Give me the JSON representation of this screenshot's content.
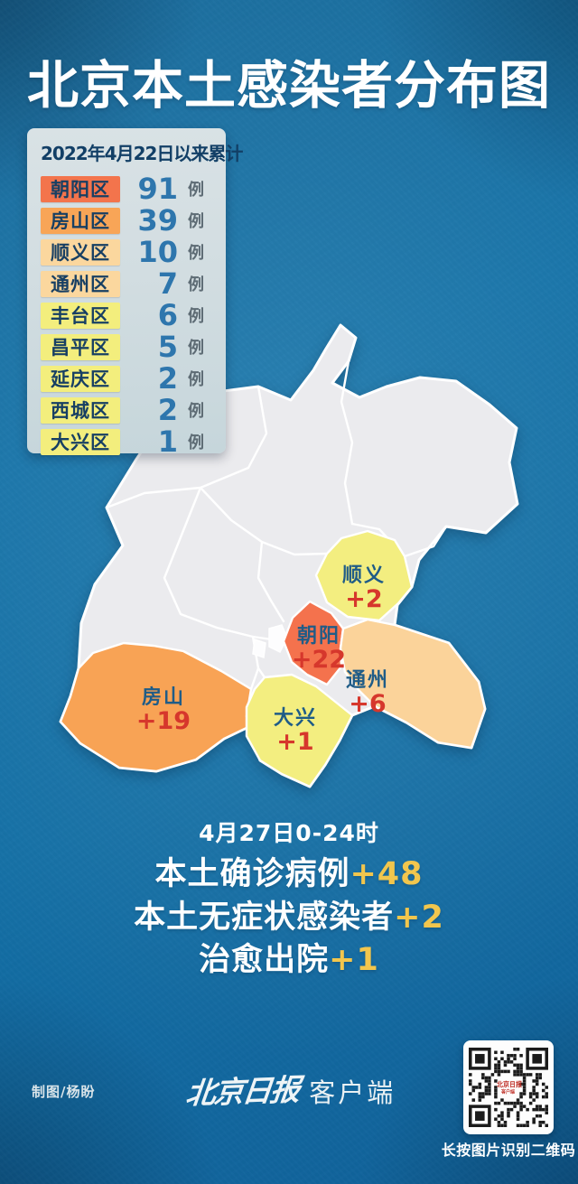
{
  "title": "北京本土感染者分布图",
  "legend": {
    "header": "2022年4月22日以来累计",
    "unit": "例",
    "rows": [
      {
        "district": "朝阳区",
        "count": "91",
        "level": "high"
      },
      {
        "district": "房山区",
        "count": "39",
        "level": "medium"
      },
      {
        "district": "顺义区",
        "count": "10",
        "level": "low"
      },
      {
        "district": "通州区",
        "count": "7",
        "level": "low"
      },
      {
        "district": "丰台区",
        "count": "6",
        "level": "minimal"
      },
      {
        "district": "昌平区",
        "count": "5",
        "level": "minimal"
      },
      {
        "district": "延庆区",
        "count": "2",
        "level": "minimal"
      },
      {
        "district": "西城区",
        "count": "2",
        "level": "minimal"
      },
      {
        "district": "大兴区",
        "count": "1",
        "level": "minimal"
      }
    ]
  },
  "map": {
    "labels": [
      {
        "name": "顺义",
        "value": "+2"
      },
      {
        "name": "朝阳",
        "value": "+22"
      },
      {
        "name": "通州",
        "value": "+6"
      },
      {
        "name": "房山",
        "value": "+19"
      },
      {
        "name": "大兴",
        "value": "+1"
      }
    ]
  },
  "daily": {
    "date_label": "4月27日0-24时",
    "stats": [
      {
        "label": "本土确诊病例",
        "value": "+48"
      },
      {
        "label": "本土无症状感染者",
        "value": "+2"
      },
      {
        "label": "治愈出院",
        "value": "+1"
      }
    ]
  },
  "footer": {
    "credit": "制图/杨盼",
    "brand_script": "北京日报",
    "brand_suffix": "客户端",
    "qr_caption": "长按图片识别二维码"
  },
  "colors": {
    "background_blue": "#1571a5",
    "title_white": "#ffffff",
    "panel_bg": "#d3dee2",
    "navy_text": "#17456b",
    "count_blue": "#2e76ad",
    "unit_gray": "#5d6b74",
    "value_red": "#d6372c",
    "stat_value_yellow": "#f2c64d",
    "level_high": "#f3744c",
    "level_medium": "#f8a557",
    "level_low": "#fbd79e",
    "level_minimal": "#f3ee7d",
    "map_default_gray": "#ebebee"
  }
}
